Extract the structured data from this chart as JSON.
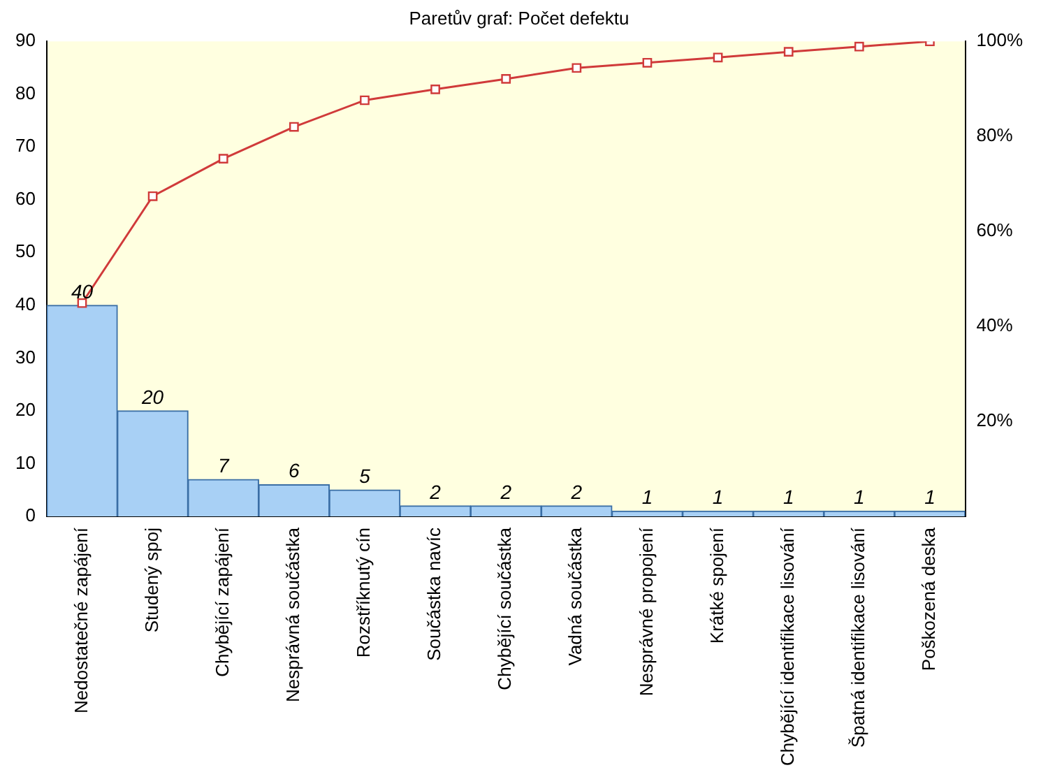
{
  "chart_data": {
    "type": "bar",
    "title": "Paretův graf: Počet defektu",
    "categories": [
      "Nedostatečné zapájení",
      "Studený spoj",
      "Chybějící zapájení",
      "Nesprávná součástka",
      "Rozstříknutý cín",
      "Součástka navíc",
      "Chybějící součástka",
      "Vadná součástka",
      "Nesprávné propojení",
      "Krátké spojení",
      "Chybějící identifikace lisování",
      "Špatná identifikace lisování",
      "Poškozená deska"
    ],
    "series": [
      {
        "type": "bar",
        "color": "#a8d0f5",
        "values": [
          40,
          20,
          7,
          6,
          5,
          2,
          2,
          2,
          1,
          1,
          1,
          1,
          1
        ],
        "value_labels": [
          "40",
          "20",
          "7",
          "6",
          "5",
          "2",
          "2",
          "2",
          "1",
          "1",
          "1",
          "1",
          "1"
        ]
      },
      {
        "type": "line",
        "axis": "y2",
        "color": "#d03a3a",
        "values": [
          44.9,
          67.4,
          75.3,
          82.0,
          87.6,
          89.9,
          92.1,
          94.4,
          95.5,
          96.6,
          97.8,
          98.9,
          100
        ]
      }
    ],
    "ylim": [
      0,
      90
    ],
    "yticks": [
      0,
      10,
      20,
      30,
      40,
      50,
      60,
      70,
      80,
      90
    ],
    "y2lim": [
      0,
      100
    ],
    "y2ticks": [
      {
        "value": 20,
        "label": "20%"
      },
      {
        "value": 40,
        "label": "40%"
      },
      {
        "value": 60,
        "label": "60%"
      },
      {
        "value": 80,
        "label": "80%"
      },
      {
        "value": 100,
        "label": "100%"
      }
    ],
    "grid": false,
    "legend": false,
    "marker": "square",
    "line_style": "solid"
  }
}
